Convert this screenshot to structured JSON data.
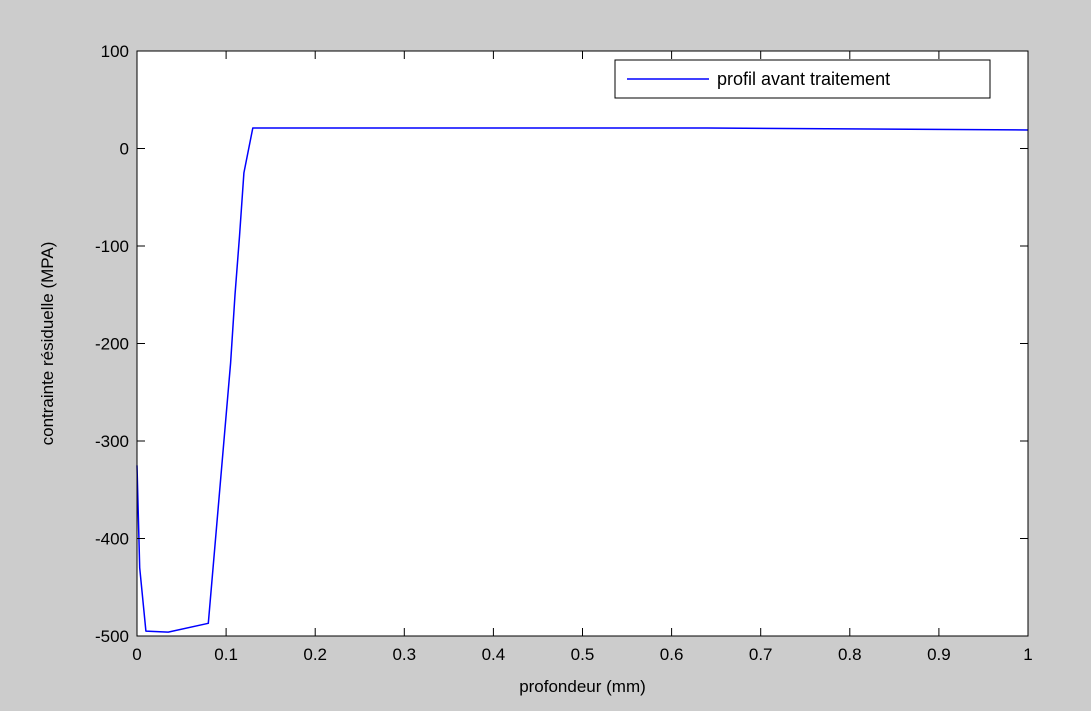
{
  "figure": {
    "background": "#cccccc",
    "axes_background": "#ffffff"
  },
  "chart_data": {
    "type": "line",
    "xlabel": "profondeur (mm)",
    "ylabel": "contrainte résiduelle (MPA)",
    "xlim": [
      0,
      1
    ],
    "ylim": [
      -500,
      100
    ],
    "xticks": [
      0,
      0.1,
      0.2,
      0.3,
      0.4,
      0.5,
      0.6,
      0.7,
      0.8,
      0.9,
      1
    ],
    "xtick_labels": [
      "0",
      "0.1",
      "0.2",
      "0.3",
      "0.4",
      "0.5",
      "0.6",
      "0.7",
      "0.8",
      "0.9",
      "1"
    ],
    "yticks": [
      100,
      0,
      -100,
      -200,
      -300,
      -400,
      -500
    ],
    "ytick_labels": [
      "100",
      "0",
      "-100",
      "-200",
      "-300",
      "-400",
      "-500"
    ],
    "grid": false,
    "legend_position": "top-right",
    "series": [
      {
        "name": "profil avant traitement",
        "color": "#0000ff",
        "x": [
          0,
          0.003,
          0.01,
          0.035,
          0.08,
          0.105,
          0.11,
          0.115,
          0.12,
          0.13,
          0.64,
          1.0
        ],
        "y": [
          -325,
          -430,
          -495,
          -496,
          -487,
          -220,
          -150,
          -90,
          -25,
          21,
          21,
          19
        ]
      }
    ]
  }
}
